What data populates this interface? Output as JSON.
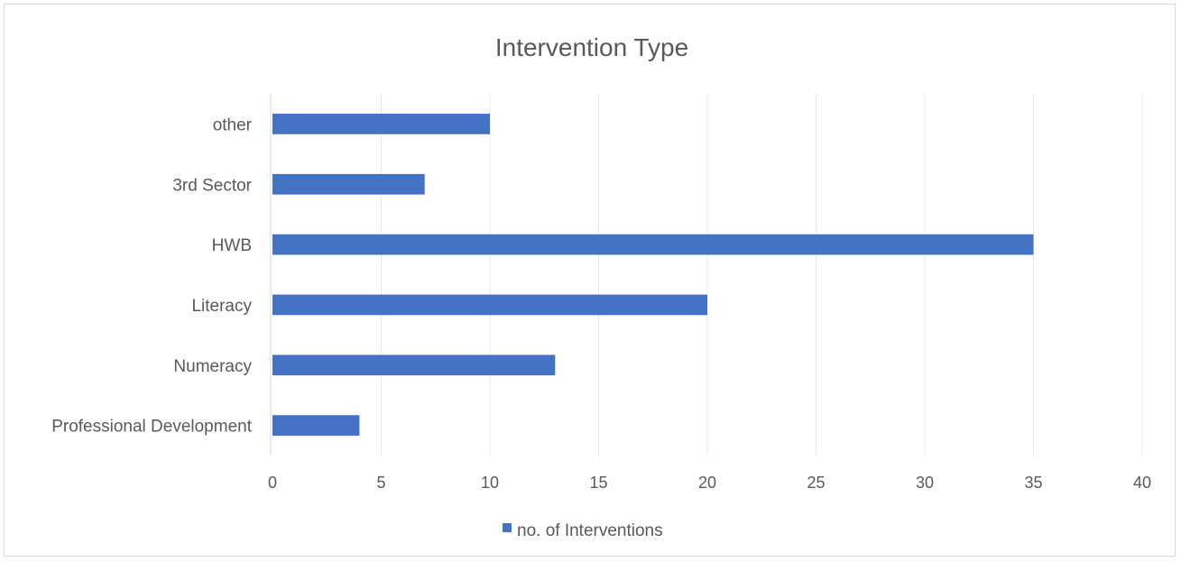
{
  "chart_data": {
    "type": "bar",
    "orientation": "horizontal",
    "title": "Intervention Type",
    "categories": [
      "other",
      "3rd Sector",
      "HWB",
      "Literacy",
      "Numeracy",
      "Professional Development"
    ],
    "series": [
      {
        "name": "no. of Interventions",
        "values": [
          10,
          7,
          35,
          20,
          13,
          4
        ],
        "color": "#4472c4"
      }
    ],
    "xlim": [
      0,
      40
    ],
    "xticks": [
      "0",
      "5",
      "10",
      "15",
      "20",
      "25",
      "30",
      "35",
      "40"
    ],
    "grid": true,
    "legend": "bottom"
  }
}
